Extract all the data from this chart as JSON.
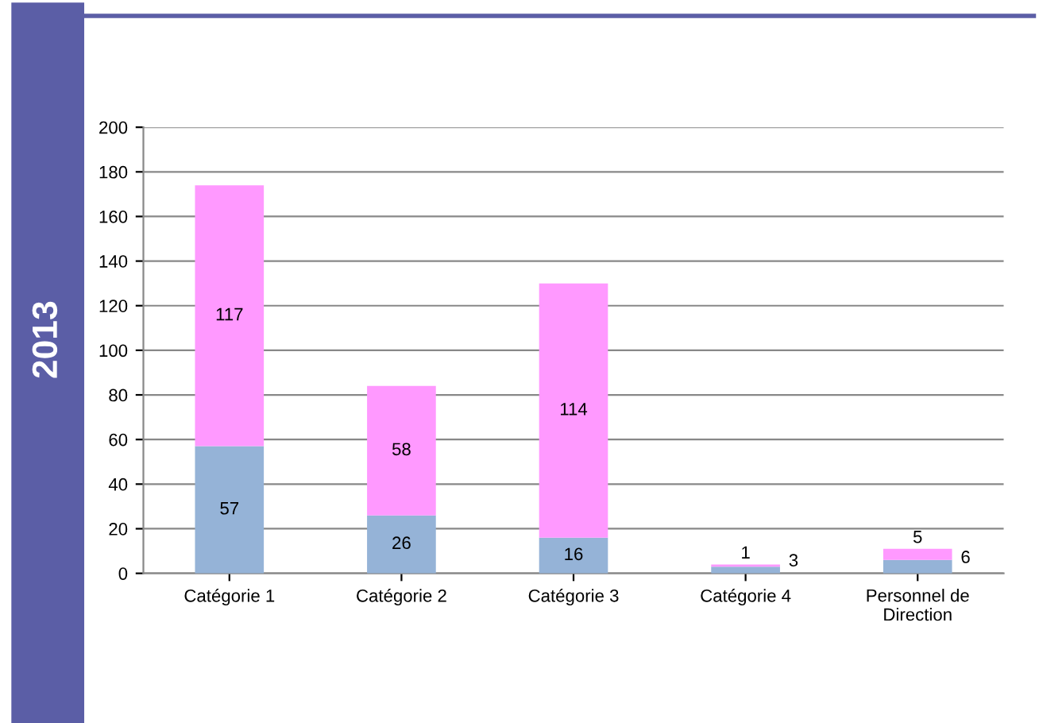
{
  "chart_data": {
    "type": "bar",
    "title": "2013",
    "categories": [
      "Catégorie 1",
      "Catégorie 2",
      "Catégorie 3",
      "Catégorie 4",
      "Personnel de\nDirection"
    ],
    "series": [
      {
        "color": "#95b3d7",
        "values": [
          57,
          26,
          16,
          3,
          6
        ]
      },
      {
        "color": "#ff99ff",
        "values": [
          117,
          58,
          114,
          1,
          5
        ]
      }
    ],
    "stacked": true,
    "data_labels": true,
    "ylim": [
      0,
      200
    ],
    "yticks": [
      0,
      20,
      40,
      60,
      80,
      100,
      120,
      140,
      160,
      180,
      200
    ],
    "grid": "y",
    "legend": false
  }
}
